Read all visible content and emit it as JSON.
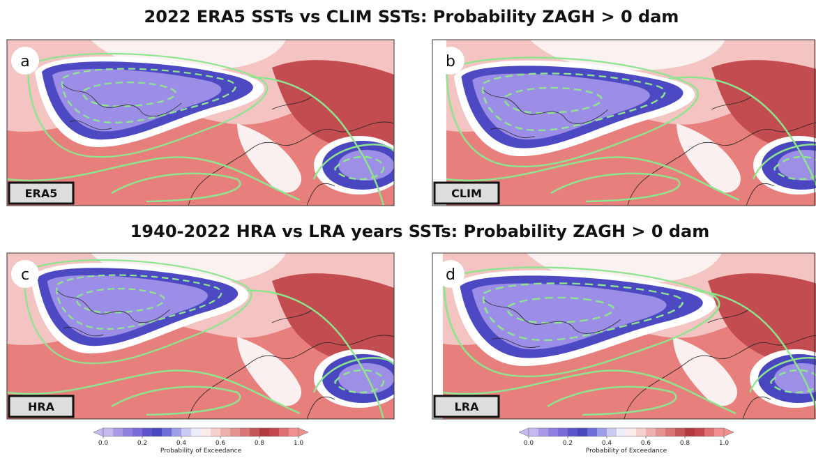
{
  "titles": [
    "2022 ERA5 SSTs vs CLIM SSTs: Probability ZAGH > 0 dam",
    "1940-2022 HRA vs LRA years SSTs: Probability ZAGH > 0 dam"
  ],
  "panels": [
    {
      "letter": "a",
      "label": "ERA5"
    },
    {
      "letter": "b",
      "label": "CLIM"
    },
    {
      "letter": "c",
      "label": "HRA"
    },
    {
      "letter": "d",
      "label": "LRA"
    }
  ],
  "colorbar": {
    "label": "Probability of Exceedance",
    "lim": [
      0,
      1
    ],
    "ticks": [
      {
        "value": 0,
        "label": "0.0"
      },
      0.2,
      0.4,
      0.6,
      0.8,
      {
        "value": 1,
        "label": "1.0"
      }
    ],
    "colors": [
      "#c7b8f0",
      "#a99ae8",
      "#8f80e0",
      "#7a6cd8",
      "#5e55cc",
      "#4a46c0",
      "#6d6fd6",
      "#9d9fe6",
      "#c9cbf2",
      "#eeeefa",
      "#fbecec",
      "#f5d0cf",
      "#eeb0ae",
      "#e49390",
      "#d77675",
      "#c55658",
      "#b2393e",
      "#c4454a",
      "#e0706f",
      "#f09090"
    ]
  }
}
